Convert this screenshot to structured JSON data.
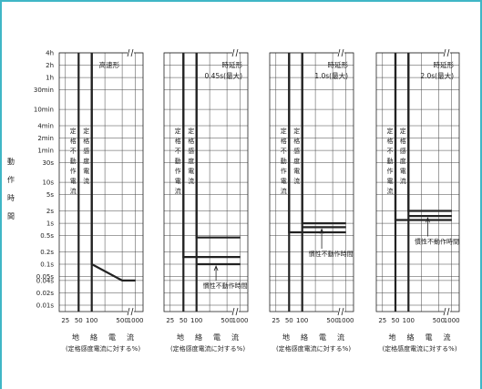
{
  "colors": {
    "frame": "#3fb6c6",
    "line": "#222222",
    "grid": "#444444",
    "bg": "#ffffff"
  },
  "y_axis": {
    "title_chars": [
      "動",
      "作",
      "時",
      "間"
    ],
    "tick_labels": [
      "4h",
      "2h",
      "1h",
      "30min",
      "10min",
      "4min",
      "2min",
      "1min",
      "30s",
      "10s",
      "5s",
      "2s",
      "1s",
      "0.5s",
      "0.2s",
      "0.1s",
      "0.05s",
      "0.04s",
      "0.02s",
      "0.01s"
    ]
  },
  "x_axis": {
    "tick_labels": [
      "25",
      "50",
      "100",
      "500",
      "1000"
    ],
    "title_chars": [
      "地",
      "絡",
      "電",
      "流"
    ],
    "subtitle": "(定格感度電流に対する%)"
  },
  "chart_data": [
    {
      "type": "line",
      "label_lines": [
        "高速形"
      ],
      "vertical_labels": [
        "定格不動作電流",
        "定格感度電流"
      ],
      "ylabel": "動作時間",
      "xlabel": "地絡電流",
      "x_scale": "log",
      "y_scale": "log",
      "series": [
        {
          "x": [
            100,
            100,
            500,
            1000
          ],
          "y": [
            "4h",
            "0.1s",
            "0.04s",
            "0.04s"
          ]
        }
      ],
      "annotation": ""
    },
    {
      "type": "line",
      "label_lines": [
        "時延形",
        "0.45s(最大)"
      ],
      "vertical_labels": [
        "定格不動作電流",
        "定格感度電流"
      ],
      "ylabel": "動作時間",
      "xlabel": "地絡電流",
      "x_scale": "log",
      "y_scale": "log",
      "series": [
        {
          "name": "",
          "x": [
            100,
            100,
            1000
          ],
          "y": [
            "4h",
            "0.45s",
            "0.45s"
          ]
        },
        {
          "name": "",
          "x": [
            50,
            50,
            1000
          ],
          "y": [
            "4h",
            "0.15s",
            "0.15s"
          ]
        },
        {
          "name": "",
          "x": [
            100,
            1000
          ],
          "y": [
            "0.1s",
            "0.1s"
          ]
        }
      ],
      "annotation": "慣性不動作時間"
    },
    {
      "type": "line",
      "label_lines": [
        "時延形",
        "1.0s(最大)"
      ],
      "vertical_labels": [
        "定格不動作電流",
        "定格感度電流"
      ],
      "ylabel": "動作時間",
      "xlabel": "地絡電流",
      "x_scale": "log",
      "y_scale": "log",
      "series": [
        {
          "name": "",
          "x": [
            100,
            100,
            1000
          ],
          "y": [
            "4h",
            "1s",
            "1s"
          ]
        },
        {
          "name": "",
          "x": [
            50,
            50,
            1000
          ],
          "y": [
            "4h",
            "0.6s",
            "0.6s"
          ]
        },
        {
          "name": "",
          "x": [
            100,
            1000
          ],
          "y": [
            "0.8s",
            "0.8s"
          ]
        }
      ],
      "annotation": "慣性不動作時間"
    },
    {
      "type": "line",
      "label_lines": [
        "時延形",
        "2.0s(最大)"
      ],
      "vertical_labels": [
        "定格不動作電流",
        "定格感度電流"
      ],
      "ylabel": "動作時間",
      "xlabel": "地絡電流",
      "x_scale": "log",
      "y_scale": "log",
      "series": [
        {
          "name": "",
          "x": [
            100,
            100,
            1000
          ],
          "y": [
            "4h",
            "2s",
            "2s"
          ]
        },
        {
          "name": "",
          "x": [
            50,
            50,
            1000
          ],
          "y": [
            "4h",
            "1.2s",
            "1.2s"
          ]
        },
        {
          "name": "",
          "x": [
            100,
            1000
          ],
          "y": [
            "1.5s",
            "1.5s"
          ]
        }
      ],
      "annotation": "慣性不動作時間"
    }
  ]
}
